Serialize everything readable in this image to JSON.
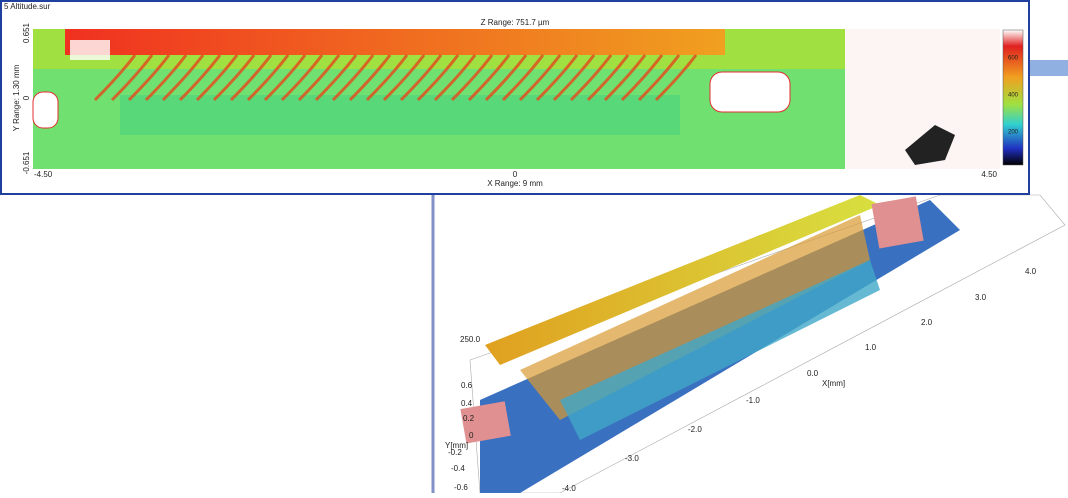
{
  "window2d": {
    "title": "5 Altitude.sur",
    "z_range": "Z Range: 751.7 µm",
    "y_range": "Y Range: 1.30 mm",
    "x_range": "X Range: 9 mm",
    "y_ticks": [
      "0.651",
      "0",
      "-0.651"
    ],
    "x_ticks": [
      "-4.50",
      "0",
      "4.50"
    ],
    "colorbar_ticks": [
      "600",
      "400",
      "200"
    ]
  },
  "view3d": {
    "z_tick": "250.0",
    "y_label": "Y[mm]",
    "x_label": "X[mm]",
    "y_ticks": [
      "0.6",
      "0.4",
      "0.2",
      "0",
      "-0.2",
      "-0.4",
      "-0.6"
    ],
    "x_ticks": [
      "4.0",
      "3.0",
      "2.0",
      "1.0",
      "0.0",
      "-1.0",
      "-2.0",
      "-3.0",
      "-4.0"
    ]
  }
}
